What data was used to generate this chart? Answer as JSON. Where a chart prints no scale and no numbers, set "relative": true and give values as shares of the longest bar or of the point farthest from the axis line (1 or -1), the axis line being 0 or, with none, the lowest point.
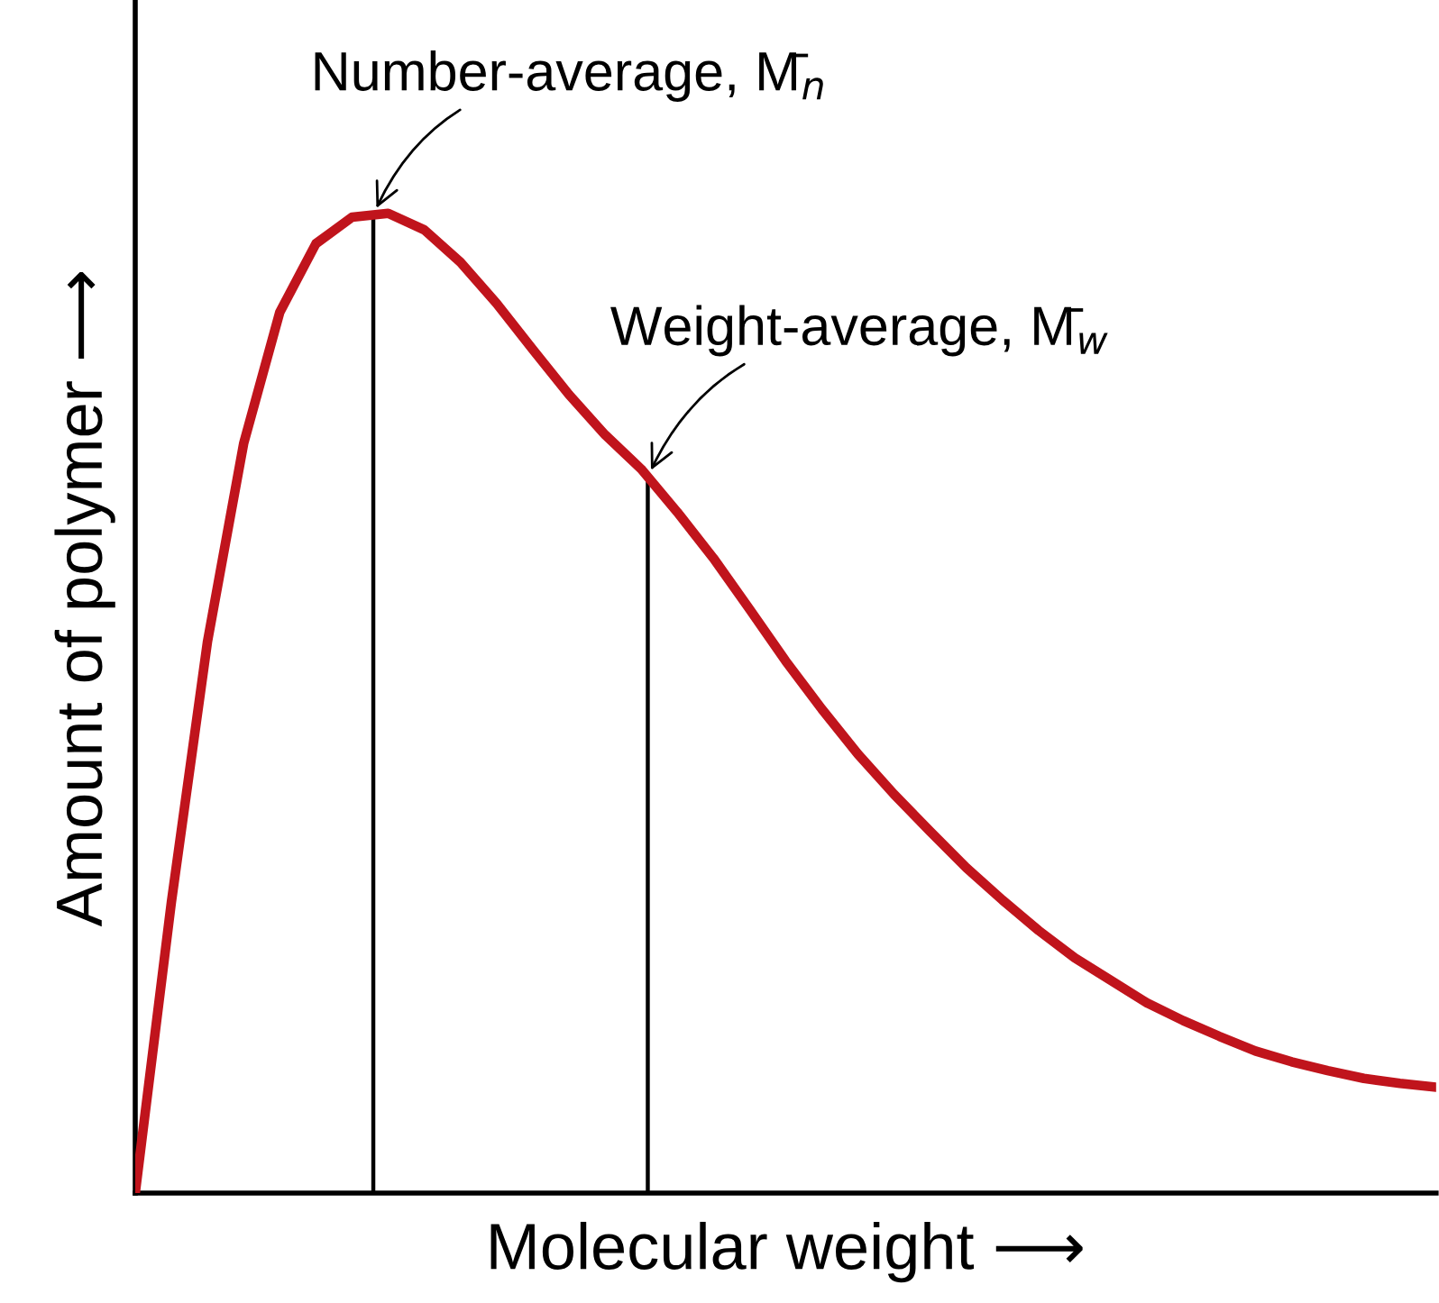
{
  "chart_data": {
    "type": "line",
    "relative": true,
    "xlabel": "Molecular weight ⟶",
    "ylabel": "Amount of polymer ⟶",
    "categories": [
      null,
      null,
      null,
      null,
      null,
      null,
      null,
      null,
      null,
      null,
      null,
      null,
      null,
      null,
      null,
      null,
      null,
      null,
      null,
      null,
      null,
      null,
      null,
      null,
      null,
      null,
      null,
      null,
      null,
      null,
      null,
      null,
      null,
      null,
      null,
      null,
      null
    ],
    "series": [
      {
        "color": "#c0141c",
        "values": [
          0,
          0.297,
          0.563,
          0.765,
          0.899,
          0.969,
          0.996,
          1.0,
          0.983,
          0.95,
          0.908,
          0.861,
          0.815,
          0.774,
          0.739,
          0.695,
          0.648,
          0.596,
          0.543,
          0.494,
          0.448,
          0.407,
          0.369,
          0.332,
          0.299,
          0.268,
          0.24,
          0.217,
          0.194,
          0.176,
          0.16,
          0.145,
          0.134,
          0.125,
          0.117,
          0.112,
          0.108
        ]
      }
    ],
    "annotations": [
      "Number-average, M̄$_{n}$",
      "Weight-average, M̄$_{w}$"
    ],
    "grid": false,
    "legend": false,
    "marker": "none",
    "line_style": "solid"
  }
}
